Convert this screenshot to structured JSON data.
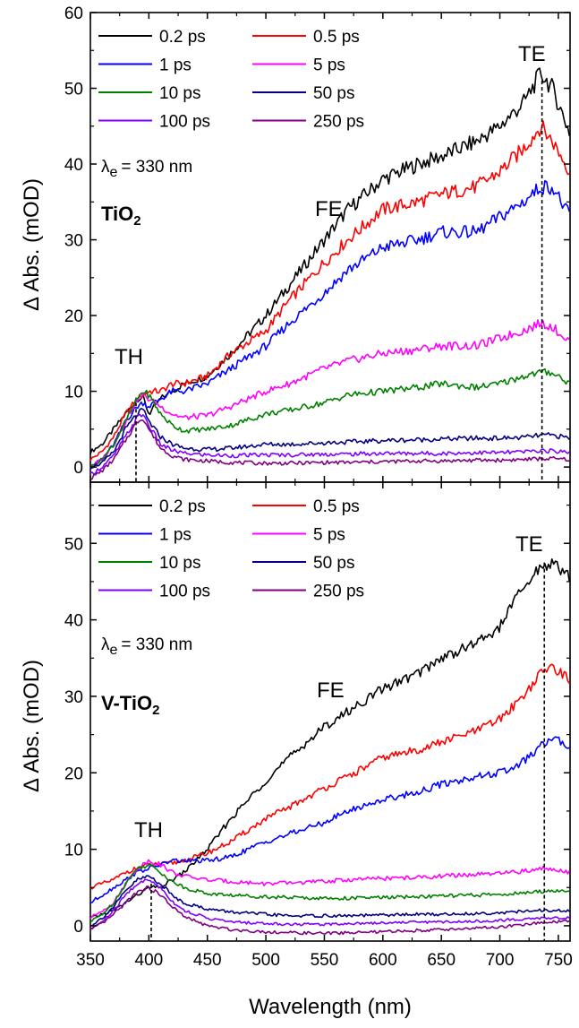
{
  "chart_data": [
    {
      "type": "line",
      "panel": "top",
      "xlim": [
        350,
        760
      ],
      "ylim": [
        -2,
        60
      ],
      "yticks": [
        0,
        10,
        20,
        30,
        40,
        50,
        60
      ],
      "xticks": [
        350,
        400,
        450,
        500,
        550,
        600,
        650,
        700,
        750
      ],
      "ylabel": "Δ Abs. (mOD)",
      "xlabel": "",
      "grid": false,
      "legend_position": "top-left",
      "annotations": {
        "excitation_symbol": "λ",
        "excitation_sub": "e",
        "excitation_value": "= 330 nm",
        "sample_main": "TiO",
        "sample_sub": "2",
        "TH": "TH",
        "FE": "FE",
        "TE": "TE",
        "TH_line_x": 389,
        "TE_line_x": 736
      },
      "series": [
        {
          "name": "0.2 ps",
          "color": "#000000",
          "x": [
            350,
            360,
            370,
            380,
            390,
            395,
            400,
            410,
            420,
            430,
            450,
            470,
            500,
            520,
            550,
            570,
            600,
            630,
            650,
            680,
            700,
            720,
            735,
            745,
            760
          ],
          "y": [
            2,
            3,
            5,
            7,
            9,
            9.2,
            7,
            9,
            10,
            11,
            12,
            15,
            20,
            24,
            30,
            34,
            38,
            40,
            41,
            43,
            45,
            48,
            52,
            50,
            44
          ]
        },
        {
          "name": "0.5 ps",
          "color": "#ff0000",
          "x": [
            350,
            360,
            370,
            380,
            390,
            395,
            400,
            410,
            420,
            430,
            450,
            470,
            500,
            520,
            550,
            570,
            600,
            630,
            650,
            680,
            700,
            720,
            735,
            745,
            760
          ],
          "y": [
            1,
            2,
            4,
            7,
            9,
            9.5,
            10,
            10,
            11,
            11,
            12,
            15,
            18,
            22,
            27,
            30,
            34,
            35,
            36,
            37,
            39,
            42,
            45,
            43,
            39
          ]
        },
        {
          "name": "1 ps",
          "color": "#0000ff",
          "x": [
            350,
            360,
            370,
            380,
            390,
            395,
            400,
            410,
            420,
            430,
            450,
            470,
            500,
            520,
            550,
            570,
            600,
            630,
            650,
            680,
            700,
            720,
            735,
            745,
            760
          ],
          "y": [
            0,
            1,
            3,
            6,
            8,
            8.5,
            8,
            9,
            10,
            10,
            11,
            13,
            16,
            19,
            23,
            26,
            29,
            30,
            31,
            31,
            33,
            35,
            37,
            37,
            33
          ]
        },
        {
          "name": "5 ps",
          "color": "#ff00ff",
          "x": [
            350,
            360,
            370,
            380,
            390,
            395,
            400,
            410,
            420,
            430,
            450,
            470,
            500,
            520,
            550,
            570,
            600,
            630,
            650,
            680,
            700,
            720,
            735,
            745,
            760
          ],
          "y": [
            0,
            1,
            3,
            6,
            9,
            9.5,
            9,
            8,
            7,
            6.5,
            6.8,
            8,
            10,
            11,
            13,
            14,
            15,
            15.5,
            16,
            16,
            17,
            18,
            19,
            18.5,
            16.5
          ]
        },
        {
          "name": "10 ps",
          "color": "#008000",
          "x": [
            350,
            360,
            370,
            380,
            390,
            395,
            400,
            410,
            420,
            430,
            450,
            470,
            500,
            520,
            550,
            570,
            600,
            630,
            650,
            680,
            700,
            720,
            735,
            745,
            760
          ],
          "y": [
            0,
            1,
            3,
            6,
            9,
            10,
            9.5,
            7,
            5.5,
            4.8,
            5,
            5.5,
            7,
            7.5,
            8.5,
            9.5,
            10,
            10.5,
            11,
            10.5,
            11,
            12,
            12.5,
            12.5,
            11
          ]
        },
        {
          "name": "50 ps",
          "color": "#000080",
          "x": [
            350,
            360,
            370,
            380,
            390,
            395,
            400,
            410,
            420,
            430,
            450,
            470,
            500,
            520,
            550,
            570,
            600,
            630,
            650,
            680,
            700,
            720,
            735,
            745,
            760
          ],
          "y": [
            0,
            0.5,
            2,
            5,
            7,
            7.5,
            6,
            4,
            3,
            2.5,
            2.3,
            2.5,
            3,
            3,
            3.2,
            3.3,
            3.5,
            3.6,
            3.7,
            3.8,
            3.8,
            3.9,
            4.2,
            4.2,
            3.8
          ]
        },
        {
          "name": "100 ps",
          "color": "#8000ff",
          "x": [
            350,
            360,
            370,
            380,
            390,
            395,
            400,
            410,
            420,
            430,
            450,
            470,
            500,
            520,
            550,
            570,
            600,
            630,
            650,
            680,
            700,
            720,
            735,
            745,
            760
          ],
          "y": [
            -1,
            0,
            1.5,
            4,
            6.5,
            7,
            5.5,
            3,
            2.2,
            1.8,
            1.6,
            1.5,
            1.6,
            1.6,
            1.7,
            1.7,
            1.8,
            1.8,
            1.8,
            1.9,
            1.9,
            2,
            2.2,
            2.1,
            2
          ]
        },
        {
          "name": "250 ps",
          "color": "#800080",
          "x": [
            350,
            360,
            370,
            380,
            390,
            395,
            400,
            410,
            420,
            430,
            450,
            470,
            500,
            520,
            550,
            570,
            600,
            630,
            650,
            680,
            700,
            720,
            735,
            745,
            760
          ],
          "y": [
            -1.5,
            -0.5,
            1,
            3.5,
            6,
            6.5,
            5,
            2.5,
            1.5,
            1,
            0.8,
            0.6,
            0.5,
            0.5,
            0.6,
            0.6,
            0.7,
            0.8,
            0.8,
            0.9,
            0.9,
            1,
            1.1,
            1.1,
            1
          ]
        }
      ]
    },
    {
      "type": "line",
      "panel": "bottom",
      "xlim": [
        350,
        760
      ],
      "ylim": [
        -2,
        58
      ],
      "yticks": [
        0,
        10,
        20,
        30,
        40,
        50
      ],
      "xticks": [
        350,
        400,
        450,
        500,
        550,
        600,
        650,
        700,
        750
      ],
      "ylabel": "Δ Abs. (mOD)",
      "xlabel": "Wavelength (nm)",
      "grid": false,
      "legend_position": "top-left",
      "annotations": {
        "excitation_symbol": "λ",
        "excitation_sub": "e",
        "excitation_value": "= 330 nm",
        "sample_main": "V-TiO",
        "sample_sub": "2",
        "TH": "TH",
        "FE": "FE",
        "TE": "TE",
        "TH_line_x": 402,
        "TE_line_x": 738
      },
      "series": [
        {
          "name": "0.2 ps",
          "color": "#000000",
          "x": [
            350,
            360,
            370,
            380,
            390,
            400,
            410,
            420,
            430,
            450,
            470,
            500,
            520,
            550,
            570,
            600,
            630,
            650,
            680,
            700,
            710,
            725,
            735,
            745,
            760
          ],
          "y": [
            1,
            1.5,
            2,
            3,
            4,
            5,
            5,
            6,
            7,
            10,
            14,
            19,
            22,
            26,
            28,
            31,
            33,
            35,
            37,
            39,
            42,
            45,
            47,
            47.5,
            45.5
          ]
        },
        {
          "name": "0.5 ps",
          "color": "#ff0000",
          "x": [
            350,
            360,
            370,
            380,
            390,
            400,
            410,
            420,
            430,
            450,
            470,
            500,
            520,
            550,
            570,
            600,
            630,
            650,
            680,
            700,
            710,
            725,
            735,
            745,
            760
          ],
          "y": [
            5,
            5.5,
            6,
            7,
            7.5,
            8,
            8,
            8.2,
            8.5,
            9.5,
            11,
            14,
            15.5,
            18,
            19.5,
            22,
            23,
            24,
            25.5,
            27,
            28.5,
            31,
            33,
            34,
            32
          ]
        },
        {
          "name": "1 ps",
          "color": "#0000ff",
          "x": [
            350,
            360,
            370,
            380,
            390,
            400,
            410,
            420,
            430,
            450,
            470,
            500,
            520,
            550,
            570,
            600,
            630,
            650,
            680,
            700,
            710,
            725,
            735,
            745,
            760
          ],
          "y": [
            3,
            4,
            5,
            6,
            7,
            7.5,
            8,
            8.5,
            8.5,
            8.5,
            9,
            11,
            12,
            13.5,
            15,
            16.5,
            17.5,
            18.5,
            19.5,
            20,
            20.5,
            22,
            23.5,
            24.5,
            23.5
          ]
        },
        {
          "name": "5 ps",
          "color": "#ff00ff",
          "x": [
            350,
            360,
            370,
            380,
            390,
            400,
            410,
            420,
            430,
            450,
            470,
            500,
            520,
            550,
            570,
            600,
            630,
            650,
            680,
            700,
            710,
            725,
            735,
            745,
            760
          ],
          "y": [
            1,
            2,
            3,
            5.5,
            7.5,
            8.5,
            8,
            7,
            6.5,
            6,
            5.8,
            5.5,
            5.6,
            5.8,
            6,
            6.2,
            6.3,
            6.5,
            6.7,
            6.8,
            7,
            7.2,
            7.5,
            7.5,
            7
          ]
        },
        {
          "name": "10 ps",
          "color": "#008000",
          "x": [
            350,
            360,
            370,
            380,
            390,
            400,
            410,
            420,
            430,
            450,
            470,
            500,
            520,
            550,
            570,
            600,
            630,
            650,
            680,
            700,
            710,
            725,
            735,
            745,
            760
          ],
          "y": [
            0.5,
            1.5,
            3,
            5.5,
            7.5,
            8,
            7,
            5.8,
            5,
            4.2,
            4,
            3.8,
            3.7,
            3.6,
            3.6,
            3.7,
            3.8,
            3.9,
            4,
            4.1,
            4.2,
            4.3,
            4.5,
            4.6,
            4.4
          ]
        },
        {
          "name": "50 ps",
          "color": "#000080",
          "x": [
            350,
            360,
            370,
            380,
            390,
            400,
            410,
            420,
            430,
            450,
            470,
            500,
            520,
            550,
            570,
            600,
            630,
            650,
            680,
            700,
            710,
            725,
            735,
            745,
            760
          ],
          "y": [
            0,
            1,
            2.5,
            4.5,
            6,
            6.5,
            5.5,
            4,
            3,
            2.2,
            1.8,
            1.5,
            1.3,
            1.3,
            1.3,
            1.4,
            1.5,
            1.5,
            1.6,
            1.7,
            1.8,
            1.9,
            2,
            2,
            1.9
          ]
        },
        {
          "name": "100 ps",
          "color": "#8000ff",
          "x": [
            350,
            360,
            370,
            380,
            390,
            400,
            410,
            420,
            430,
            450,
            470,
            500,
            520,
            550,
            570,
            600,
            630,
            650,
            680,
            700,
            710,
            725,
            735,
            745,
            760
          ],
          "y": [
            -0.5,
            0.5,
            2,
            4,
            5.5,
            6,
            5,
            3.2,
            2,
            1,
            0.5,
            0.3,
            0.2,
            0.2,
            0.3,
            0.4,
            0.5,
            0.5,
            0.6,
            0.7,
            0.8,
            0.9,
            1,
            1,
            1
          ]
        },
        {
          "name": "250 ps",
          "color": "#800080",
          "x": [
            350,
            360,
            370,
            380,
            390,
            400,
            410,
            420,
            430,
            450,
            470,
            500,
            520,
            550,
            570,
            600,
            630,
            650,
            680,
            700,
            710,
            725,
            735,
            745,
            760
          ],
          "y": [
            -0.5,
            0.3,
            1.5,
            3,
            4.5,
            5,
            4,
            2.5,
            1.2,
            0,
            -0.5,
            -0.8,
            -0.9,
            -1,
            -0.9,
            -0.8,
            -0.6,
            -0.5,
            -0.3,
            -0.2,
            0,
            0.2,
            0.4,
            0.5,
            0.6
          ]
        }
      ]
    }
  ]
}
